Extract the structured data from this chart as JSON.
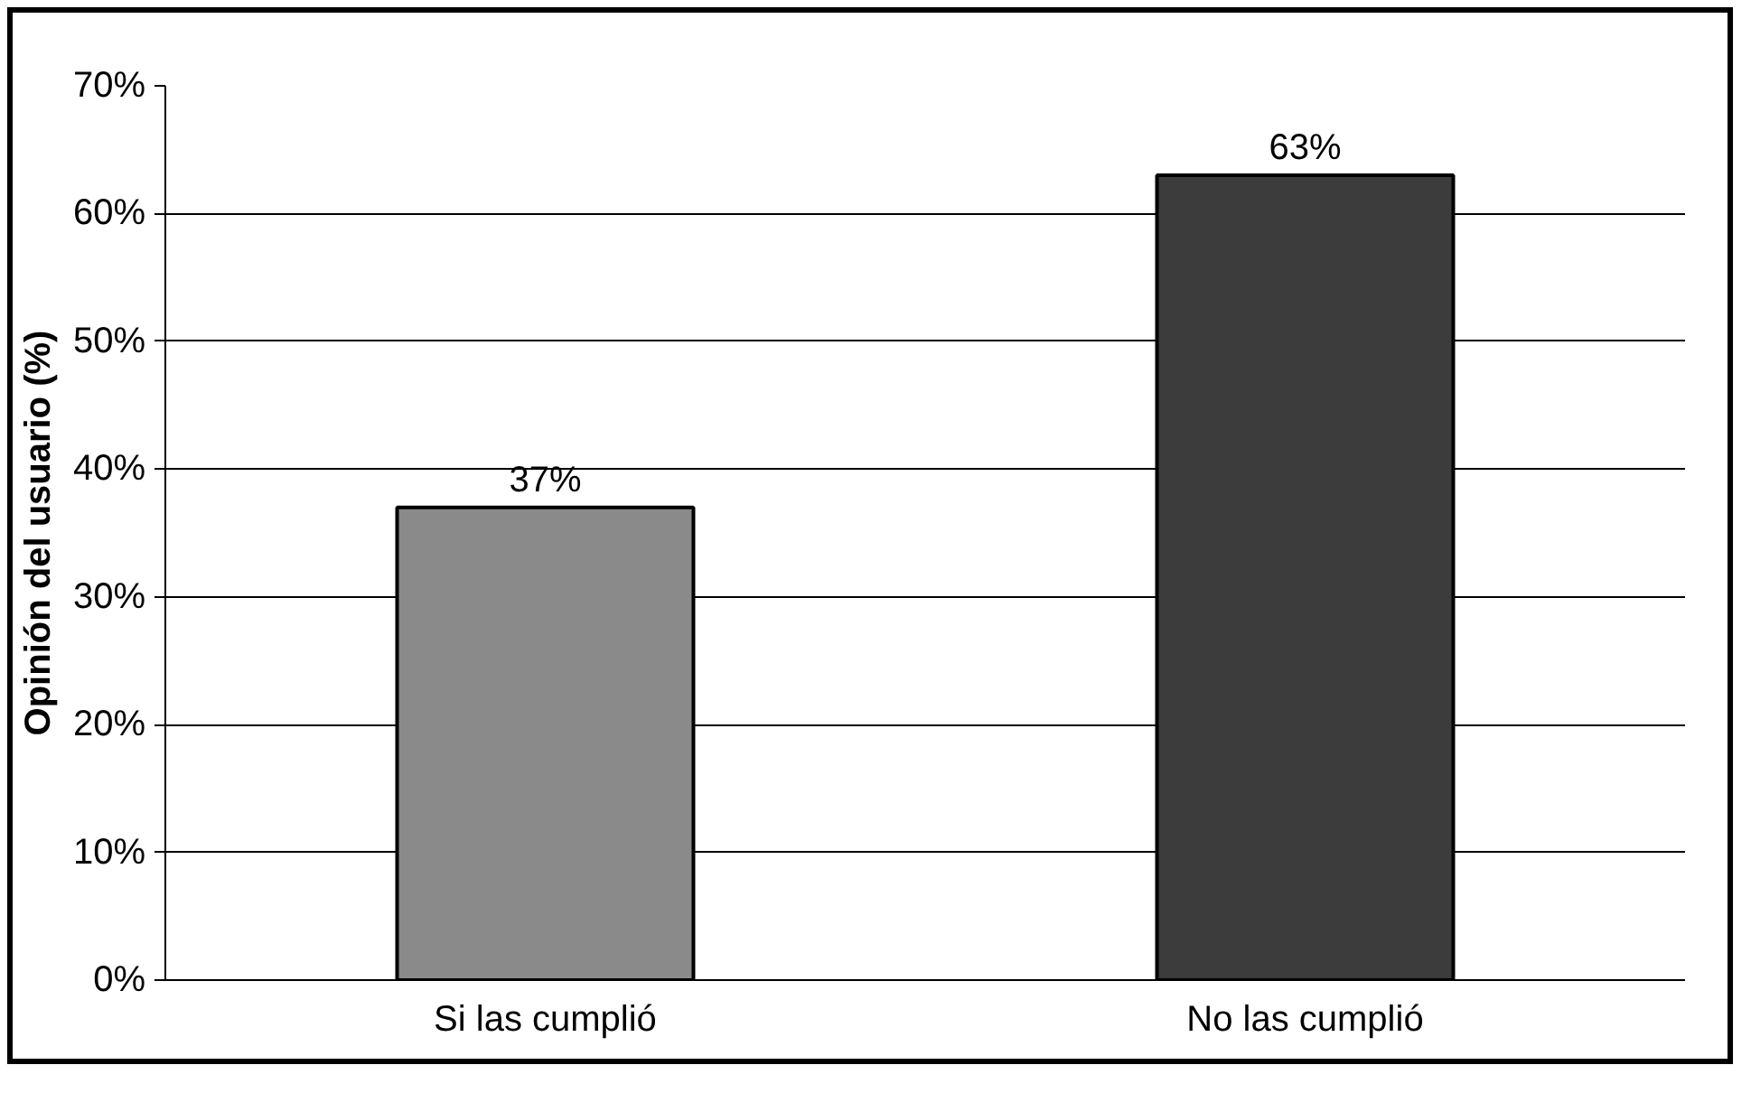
{
  "chart_data": {
    "type": "bar",
    "ylabel": "Opinión del usuario (%)",
    "categories": [
      "Si las cumplió",
      "No las cumplió"
    ],
    "values": [
      37,
      63
    ],
    "colors": [
      "#8a8a8a",
      "#3c3c3c"
    ],
    "value_labels": [
      "37%",
      "63%"
    ],
    "ylim": [
      0,
      70
    ],
    "yticks": [
      {
        "value": 0,
        "label": "0%"
      },
      {
        "value": 10,
        "label": "10%"
      },
      {
        "value": 20,
        "label": "20%"
      },
      {
        "value": 30,
        "label": "30%"
      },
      {
        "value": 40,
        "label": "40%"
      },
      {
        "value": 50,
        "label": "50%"
      },
      {
        "value": 60,
        "label": "60%"
      },
      {
        "value": 70,
        "label": "70%"
      }
    ],
    "grid": "y"
  }
}
